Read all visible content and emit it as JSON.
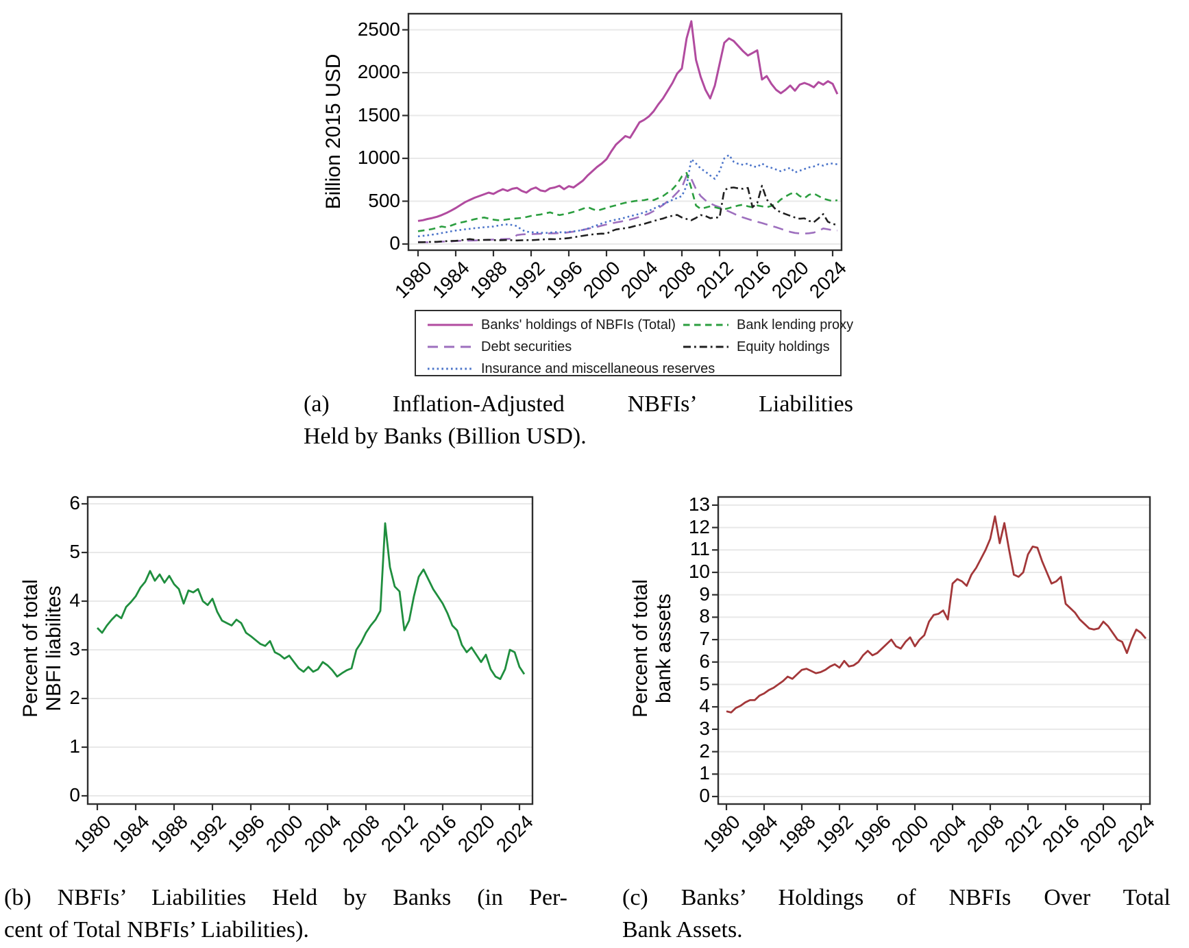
{
  "figure": {
    "captions": {
      "a": {
        "line1": "(a) Inflation-Adjusted NBFIs’ Liabilities",
        "line2": "Held by Banks (Billion USD)."
      },
      "b": {
        "line1": "(b) NBFIs’ Liabilities Held by Banks (in Per-",
        "line2": "cent of Total NBFIs’ Liabilities)."
      },
      "c": {
        "line1": "(c) Banks’ Holdings of NBFIs Over Total",
        "line2": "Bank Assets."
      }
    }
  },
  "colors": {
    "total": "#b14b9f",
    "debt": "#9d6fbe",
    "insurance": "#4a73c9",
    "lending": "#2b9e3f",
    "equity": "#1f1f1f",
    "panel_b_line": "#1f8e3e",
    "panel_c_line": "#a33739",
    "frame": "#2e2e2e",
    "grid": "#e8e8e8"
  },
  "chart_data": [
    {
      "id": "a",
      "type": "line",
      "ylabel": "Billion 2015 USD",
      "ylabel_lines": [
        "Billion 2015 USD"
      ],
      "x_start": 1980,
      "x_step": 0.5,
      "x_ticks": [
        1980,
        1984,
        1988,
        1992,
        1996,
        2000,
        2004,
        2008,
        2012,
        2016,
        2020,
        2024
      ],
      "y_ticks": [
        0,
        500,
        1000,
        1500,
        2000,
        2500
      ],
      "ylim": [
        0,
        2700
      ],
      "grid": true,
      "legend_position": "below",
      "legend_columns": [
        [
          0,
          1,
          2
        ],
        [
          3,
          4
        ]
      ],
      "series": [
        {
          "name": "Banks' holdings of NBFIs (Total)",
          "dash": "solid",
          "color_key": "total",
          "values": [
            270,
            278,
            292,
            303,
            318,
            338,
            362,
            390,
            420,
            455,
            490,
            515,
            540,
            560,
            580,
            600,
            585,
            615,
            640,
            620,
            645,
            655,
            620,
            600,
            640,
            660,
            625,
            615,
            650,
            660,
            680,
            640,
            675,
            660,
            700,
            740,
            800,
            850,
            900,
            940,
            990,
            1080,
            1160,
            1210,
            1260,
            1240,
            1330,
            1420,
            1450,
            1490,
            1550,
            1630,
            1700,
            1790,
            1880,
            1990,
            2050,
            2400,
            2600,
            2150,
            1950,
            1800,
            1700,
            1850,
            2100,
            2350,
            2400,
            2370,
            2310,
            2250,
            2200,
            2230,
            2260,
            1920,
            1960,
            1870,
            1800,
            1760,
            1800,
            1850,
            1790,
            1860,
            1880,
            1860,
            1830,
            1890,
            1860,
            1900,
            1870,
            1750
          ]
        },
        {
          "name": "Debt securities",
          "dash": "long-dash",
          "color_key": "debt",
          "values": [
            25,
            22,
            20,
            22,
            25,
            28,
            30,
            30,
            35,
            38,
            40,
            40,
            42,
            45,
            48,
            50,
            52,
            55,
            58,
            60,
            62,
            105,
            112,
            115,
            115,
            118,
            120,
            122,
            125,
            125,
            128,
            130,
            138,
            145,
            155,
            165,
            178,
            190,
            200,
            215,
            228,
            240,
            252,
            262,
            272,
            285,
            300,
            318,
            335,
            355,
            385,
            420,
            455,
            500,
            545,
            600,
            660,
            800,
            760,
            640,
            560,
            510,
            475,
            450,
            430,
            405,
            380,
            355,
            330,
            310,
            292,
            275,
            260,
            245,
            228,
            212,
            196,
            178,
            158,
            142,
            130,
            124,
            122,
            126,
            134,
            152,
            182,
            172,
            162,
            158
          ]
        },
        {
          "name": "Insurance and miscellaneous reserves",
          "dash": "dot",
          "color_key": "insurance",
          "values": [
            90,
            95,
            102,
            110,
            118,
            128,
            138,
            148,
            158,
            165,
            172,
            178,
            185,
            190,
            196,
            200,
            205,
            215,
            225,
            230,
            222,
            210,
            165,
            145,
            138,
            135,
            132,
            130,
            132,
            140,
            138,
            135,
            142,
            148,
            155,
            165,
            180,
            200,
            220,
            240,
            258,
            272,
            285,
            295,
            308,
            325,
            338,
            352,
            368,
            388,
            412,
            440,
            465,
            488,
            515,
            538,
            560,
            680,
            990,
            940,
            880,
            845,
            800,
            760,
            850,
            1000,
            1040,
            960,
            935,
            925,
            940,
            905,
            900,
            940,
            905,
            890,
            870,
            850,
            870,
            890,
            835,
            855,
            875,
            895,
            905,
            930,
            915,
            935,
            940,
            930
          ]
        },
        {
          "name": "Bank lending proxy",
          "dash": "dash",
          "color_key": "lending",
          "values": [
            150,
            158,
            165,
            175,
            188,
            205,
            195,
            215,
            235,
            250,
            262,
            275,
            290,
            302,
            310,
            298,
            285,
            278,
            280,
            288,
            295,
            300,
            305,
            315,
            328,
            338,
            345,
            358,
            370,
            352,
            338,
            348,
            360,
            375,
            392,
            412,
            432,
            408,
            390,
            405,
            422,
            438,
            452,
            468,
            482,
            492,
            502,
            508,
            512,
            525,
            512,
            535,
            560,
            600,
            640,
            700,
            790,
            830,
            650,
            450,
            410,
            425,
            440,
            430,
            415,
            405,
            420,
            435,
            450,
            460,
            440,
            430,
            450,
            440,
            430,
            445,
            470,
            520,
            555,
            585,
            605,
            560,
            535,
            575,
            590,
            560,
            530,
            515,
            500,
            512
          ]
        },
        {
          "name": "Equity holdings",
          "dash": "dash-dot",
          "color_key": "equity",
          "values": [
            20,
            22,
            24,
            25,
            26,
            30,
            34,
            36,
            38,
            42,
            52,
            58,
            50,
            46,
            48,
            50,
            46,
            44,
            46,
            48,
            44,
            42,
            44,
            46,
            45,
            48,
            52,
            55,
            58,
            56,
            60,
            64,
            70,
            78,
            88,
            96,
            105,
            112,
            118,
            122,
            120,
            150,
            170,
            178,
            185,
            195,
            210,
            222,
            235,
            252,
            268,
            285,
            298,
            318,
            330,
            340,
            310,
            292,
            278,
            305,
            338,
            328,
            302,
            310,
            310,
            630,
            655,
            660,
            650,
            645,
            655,
            430,
            480,
            680,
            520,
            460,
            400,
            370,
            350,
            330,
            310,
            295,
            300,
            270,
            255,
            300,
            350,
            260,
            235,
            222
          ]
        }
      ]
    },
    {
      "id": "b",
      "type": "line",
      "ylabel": "Percent of total NBFI liabilites",
      "ylabel_lines": [
        "Percent of total",
        "NBFI liabilites"
      ],
      "x_start": 1980,
      "x_step": 0.5,
      "x_ticks": [
        1980,
        1984,
        1988,
        1992,
        1996,
        2000,
        2004,
        2008,
        2012,
        2016,
        2020,
        2024
      ],
      "y_ticks": [
        0,
        1,
        2,
        3,
        4,
        5,
        6
      ],
      "ylim": [
        0,
        6.3
      ],
      "grid": true,
      "series": [
        {
          "name": "NBFI liabilities held by banks (percent)",
          "dash": "solid",
          "color_key": "panel_b_line",
          "values": [
            3.45,
            3.35,
            3.5,
            3.62,
            3.72,
            3.65,
            3.88,
            3.98,
            4.1,
            4.28,
            4.4,
            4.62,
            4.42,
            4.55,
            4.38,
            4.52,
            4.35,
            4.25,
            3.95,
            4.22,
            4.18,
            4.25,
            4.0,
            3.92,
            4.05,
            3.78,
            3.6,
            3.55,
            3.5,
            3.62,
            3.55,
            3.35,
            3.28,
            3.2,
            3.12,
            3.08,
            3.18,
            2.95,
            2.9,
            2.82,
            2.88,
            2.75,
            2.62,
            2.55,
            2.65,
            2.55,
            2.6,
            2.75,
            2.68,
            2.58,
            2.45,
            2.52,
            2.58,
            2.62,
            3.0,
            3.15,
            3.35,
            3.5,
            3.62,
            3.8,
            5.6,
            4.7,
            4.3,
            4.2,
            3.4,
            3.6,
            4.1,
            4.5,
            4.65,
            4.45,
            4.25,
            4.1,
            3.95,
            3.75,
            3.5,
            3.4,
            3.1,
            2.95,
            3.05,
            2.9,
            2.75,
            2.9,
            2.6,
            2.45,
            2.4,
            2.6,
            3.0,
            2.95,
            2.65,
            2.5
          ]
        }
      ]
    },
    {
      "id": "c",
      "type": "line",
      "ylabel": "Percent of total bank assets",
      "ylabel_lines": [
        "Percent of total",
        "bank assets"
      ],
      "x_start": 1980,
      "x_step": 0.5,
      "x_ticks": [
        1980,
        1984,
        1988,
        1992,
        1996,
        2000,
        2004,
        2008,
        2012,
        2016,
        2020,
        2024
      ],
      "y_ticks": [
        0,
        1,
        2,
        3,
        4,
        5,
        6,
        7,
        8,
        9,
        10,
        11,
        12,
        13
      ],
      "ylim": [
        0,
        13.4
      ],
      "grid": true,
      "series": [
        {
          "name": "Banks' holdings of NBFIs over total bank assets (percent)",
          "dash": "solid",
          "color_key": "panel_c_line",
          "values": [
            3.8,
            3.75,
            3.95,
            4.05,
            4.2,
            4.3,
            4.3,
            4.5,
            4.6,
            4.75,
            4.85,
            5.0,
            5.15,
            5.35,
            5.25,
            5.45,
            5.65,
            5.7,
            5.6,
            5.5,
            5.55,
            5.65,
            5.8,
            5.9,
            5.75,
            6.05,
            5.8,
            5.85,
            6.0,
            6.3,
            6.5,
            6.3,
            6.4,
            6.6,
            6.8,
            7.0,
            6.7,
            6.6,
            6.9,
            7.1,
            6.7,
            7.0,
            7.2,
            7.8,
            8.1,
            8.15,
            8.3,
            7.9,
            9.5,
            9.7,
            9.6,
            9.4,
            9.9,
            10.2,
            10.6,
            11.0,
            11.5,
            12.5,
            11.3,
            12.2,
            11.0,
            9.9,
            9.8,
            10.0,
            10.8,
            11.15,
            11.1,
            10.5,
            10.0,
            9.5,
            9.6,
            9.8,
            8.6,
            8.4,
            8.2,
            7.9,
            7.7,
            7.5,
            7.45,
            7.5,
            7.8,
            7.6,
            7.3,
            7.0,
            6.9,
            6.4,
            7.0,
            7.45,
            7.3,
            7.05
          ]
        }
      ]
    }
  ]
}
